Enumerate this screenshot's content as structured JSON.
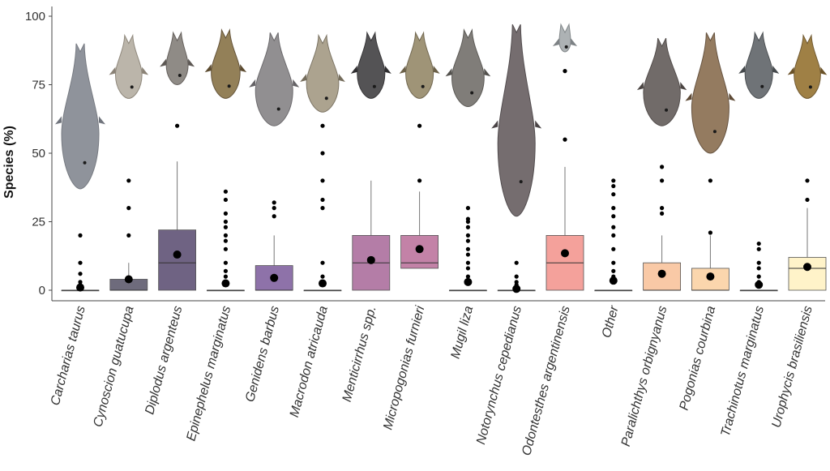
{
  "chart_data": {
    "type": "boxplot",
    "ylabel": "Species (%)",
    "xlabel": "",
    "ylim": [
      0,
      100
    ],
    "yticks": [
      0,
      25,
      50,
      75,
      100
    ],
    "grid": false,
    "legend": "none",
    "categories": [
      "Carcharias taurus",
      "Cynoscion guatucupa",
      "Diplodus argenteus",
      "Epinephelus marginatus",
      "Genidens barbus",
      "Macrodon atricauda",
      "Menticirrhus spp.",
      "Micropogonias furnieri",
      "Mugil liza",
      "Notorynchus cepedianus",
      "Odontesthes argentinensis",
      "Other",
      "Paralichthys orbignyanus",
      "Pogonias courbina",
      "Trachinotus marginatus",
      "Urophycis brasiliensis"
    ],
    "colors": [
      "#4a4a4a",
      "#6e6b7c",
      "#6f6383",
      "#7b6992",
      "#8e72a9",
      "#9a77b2",
      "#b47da7",
      "#c382a7",
      "#d08aa6",
      "#df95a2",
      "#f4a19b",
      "#f7b4a0",
      "#f9c9a6",
      "#fbd6ad",
      "#fde4b8",
      "#fff3c9"
    ],
    "boxes": [
      {
        "q1": 0,
        "median": 0,
        "q3": 0,
        "whisker_low": 0,
        "whisker_high": 0,
        "mean": 1.0,
        "outliers": [
          20,
          10,
          6,
          3,
          2,
          1
        ]
      },
      {
        "q1": 0,
        "median": 0,
        "q3": 4,
        "whisker_low": 0,
        "whisker_high": 10,
        "mean": 4,
        "outliers": [
          40,
          30,
          20
        ]
      },
      {
        "q1": 0,
        "median": 10,
        "q3": 22,
        "whisker_low": 0,
        "whisker_high": 47,
        "mean": 13,
        "outliers": [
          60
        ]
      },
      {
        "q1": 0,
        "median": 0,
        "q3": 0,
        "whisker_low": 0,
        "whisker_high": 0,
        "mean": 2.5,
        "outliers": [
          36,
          33,
          28,
          25,
          23,
          20,
          18,
          15,
          10,
          7,
          5,
          3,
          2
        ]
      },
      {
        "q1": 0,
        "median": 0,
        "q3": 9,
        "whisker_low": 0,
        "whisker_high": 20,
        "mean": 4.5,
        "outliers": [
          32,
          30,
          27
        ]
      },
      {
        "q1": 0,
        "median": 0,
        "q3": 0,
        "whisker_low": 0,
        "whisker_high": 0,
        "mean": 2.5,
        "outliers": [
          60,
          50,
          40,
          33,
          30,
          10,
          5,
          3,
          2
        ]
      },
      {
        "q1": 0,
        "median": 10,
        "q3": 20,
        "whisker_low": 0,
        "whisker_high": 40,
        "mean": 11,
        "outliers": []
      },
      {
        "q1": 8,
        "median": 10,
        "q3": 20,
        "whisker_low": 0,
        "whisker_high": 36,
        "mean": 15,
        "outliers": [
          60,
          40
        ]
      },
      {
        "q1": 0,
        "median": 0,
        "q3": 0,
        "whisker_low": 0,
        "whisker_high": 0,
        "mean": 3,
        "outliers": [
          30,
          26,
          25,
          23,
          20,
          18,
          15,
          13,
          10,
          8,
          5,
          3
        ]
      },
      {
        "q1": 0,
        "median": 0,
        "q3": 0,
        "whisker_low": 0,
        "whisker_high": 0,
        "mean": 0.5,
        "outliers": [
          10,
          5,
          3,
          2,
          1
        ]
      },
      {
        "q1": 0,
        "median": 10,
        "q3": 20,
        "whisker_low": 0,
        "whisker_high": 45,
        "mean": 13.5,
        "outliers": [
          80,
          55
        ]
      },
      {
        "q1": 0,
        "median": 0,
        "q3": 0,
        "whisker_low": 0,
        "whisker_high": 0,
        "mean": 3.5,
        "outliers": [
          40,
          38,
          35,
          30,
          27,
          23,
          20,
          15,
          10,
          7,
          5,
          3
        ]
      },
      {
        "q1": 0,
        "median": 0,
        "q3": 10,
        "whisker_low": 0,
        "whisker_high": 20,
        "mean": 6,
        "outliers": [
          45,
          40,
          30,
          28
        ]
      },
      {
        "q1": 0,
        "median": 0,
        "q3": 8,
        "whisker_low": 0,
        "whisker_high": 20,
        "mean": 5,
        "outliers": [
          40,
          21
        ]
      },
      {
        "q1": 0,
        "median": 0,
        "q3": 0,
        "whisker_low": 0,
        "whisker_high": 0,
        "mean": 2,
        "outliers": [
          17,
          15,
          10,
          8,
          5,
          3
        ]
      },
      {
        "q1": 0,
        "median": 8,
        "q3": 12,
        "whisker_low": 0,
        "whisker_high": 30,
        "mean": 8.5,
        "outliers": [
          40,
          33
        ]
      }
    ],
    "fish_images": [
      {
        "body": "#8a8e96",
        "fin": "#70747c",
        "head_y": 10,
        "tail_y": 63
      },
      {
        "body": "#b8b2a6",
        "fin": "#8a8276",
        "head_y": 7,
        "tail_y": 30
      },
      {
        "body": "#8a8580",
        "fin": "#5d5854",
        "head_y": 6,
        "tail_y": 25
      },
      {
        "body": "#8e7a50",
        "fin": "#5c4b30",
        "head_y": 5,
        "tail_y": 30
      },
      {
        "body": "#8c8a8c",
        "fin": "#656366",
        "head_y": 6,
        "tail_y": 40
      },
      {
        "body": "#a89f8a",
        "fin": "#756d5c",
        "head_y": 7,
        "tail_y": 35
      },
      {
        "body": "#4b4a4c",
        "fin": "#2f2e30",
        "head_y": 6,
        "tail_y": 30
      },
      {
        "body": "#9a8f70",
        "fin": "#6b6048",
        "head_y": 6,
        "tail_y": 30
      },
      {
        "body": "#7a7772",
        "fin": "#54524e",
        "head_y": 5,
        "tail_y": 33
      },
      {
        "body": "#6e6668",
        "fin": "#4a4446",
        "head_y": 3,
        "tail_y": 73
      },
      {
        "body": "#a9aeb0",
        "fin": "#7d8285",
        "head_y": 3,
        "tail_y": 13
      },
      {
        "body": "#ffffff",
        "fin": "#ffffff",
        "head_y": 0,
        "tail_y": 0
      },
      {
        "body": "#6a6462",
        "fin": "#4a4442",
        "head_y": 8,
        "tail_y": 40
      },
      {
        "body": "#8f7458",
        "fin": "#5e4a36",
        "head_y": 6,
        "tail_y": 50
      },
      {
        "body": "#686c70",
        "fin": "#45494c",
        "head_y": 6,
        "tail_y": 30
      },
      {
        "body": "#9a7a3c",
        "fin": "#6a5228",
        "head_y": 7,
        "tail_y": 30
      }
    ]
  }
}
